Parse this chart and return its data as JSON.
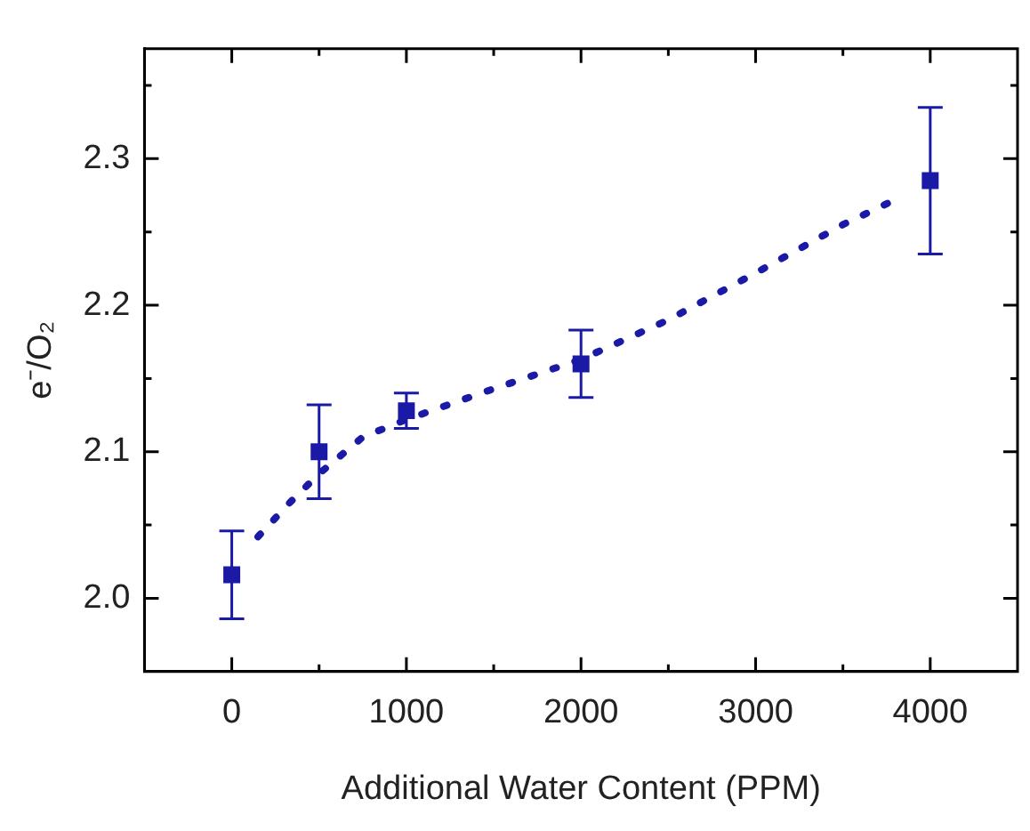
{
  "chart_data": {
    "type": "scatter",
    "xlabel": "Additional Water Content (PPM)",
    "ylabel": "e⁻/O₂",
    "xlim": [
      -500,
      4500
    ],
    "xticks": [
      0,
      1000,
      2000,
      3000,
      4000
    ],
    "ylim": [
      1.95,
      2.375
    ],
    "yticks": [
      {
        "value": 2.0,
        "label": "2.0"
      },
      {
        "value": 2.1,
        "label": "2.1"
      },
      {
        "value": 2.2,
        "label": "2.2"
      },
      {
        "value": 2.3,
        "label": "2.3"
      }
    ],
    "grid": false,
    "legend": false,
    "marker": "square",
    "series": [
      {
        "color": "#1a1aa6",
        "x": [
          0,
          500,
          1000,
          2000,
          4000
        ],
        "values": [
          2.016,
          2.1,
          2.128,
          2.16,
          2.285
        ],
        "errors": [
          0.03,
          0.032,
          0.012,
          0.023,
          0.05
        ]
      },
      {
        "type": "line",
        "color": "#1a1aa6",
        "line_style": "dotted",
        "marker": "none",
        "x": [
          150,
          330,
          500,
          750,
          1000,
          1500,
          2000,
          2500,
          3000,
          3500,
          3800
        ],
        "values": [
          2.042,
          2.065,
          2.085,
          2.11,
          2.122,
          2.143,
          2.163,
          2.19,
          2.222,
          2.255,
          2.272
        ]
      }
    ]
  }
}
